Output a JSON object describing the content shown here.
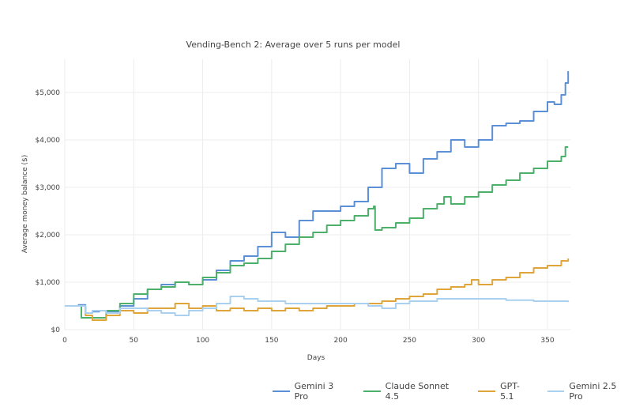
{
  "chart_data": {
    "type": "line",
    "title": "Vending-Bench 2: Average over 5 runs per model",
    "xlabel": "Days",
    "ylabel": "Average money balance ($)",
    "xlim": [
      0,
      367
    ],
    "ylim": [
      0,
      5700
    ],
    "xticks": [
      0,
      50,
      100,
      150,
      200,
      250,
      300,
      350
    ],
    "xtick_labels": [
      "0",
      "50",
      "100",
      "150",
      "200",
      "250",
      "300",
      "350"
    ],
    "yticks": [
      0,
      1000,
      2000,
      3000,
      4000,
      5000
    ],
    "ytick_labels": [
      "$0",
      "$1,000",
      "$2,000",
      "$3,000",
      "$4,000",
      "$5,000"
    ],
    "grid": true,
    "legend_placement": "bottom-right",
    "series": [
      {
        "name": "Gemini 3 Pro",
        "color": "#5b8fd6",
        "x": [
          0,
          10,
          15,
          20,
          25,
          30,
          40,
          50,
          60,
          70,
          80,
          90,
          100,
          110,
          120,
          130,
          140,
          150,
          160,
          170,
          180,
          190,
          200,
          210,
          220,
          230,
          240,
          250,
          260,
          270,
          280,
          290,
          300,
          310,
          320,
          330,
          340,
          350,
          355,
          360,
          363,
          365
        ],
        "y": [
          500,
          520,
          350,
          380,
          400,
          380,
          500,
          650,
          850,
          950,
          1000,
          950,
          1050,
          1250,
          1450,
          1550,
          1750,
          2050,
          1950,
          2300,
          2500,
          2500,
          2600,
          2700,
          3000,
          3400,
          3500,
          3300,
          3600,
          3750,
          4000,
          3850,
          4000,
          4300,
          4350,
          4400,
          4600,
          4800,
          4750,
          4950,
          5200,
          5450
        ]
      },
      {
        "name": "Claude Sonnet 4.5",
        "color": "#4caf6a",
        "x": [
          0,
          10,
          12,
          20,
          30,
          40,
          50,
          60,
          70,
          80,
          90,
          100,
          110,
          120,
          130,
          140,
          150,
          160,
          170,
          180,
          190,
          200,
          210,
          220,
          224,
          225,
          230,
          240,
          250,
          260,
          270,
          275,
          280,
          290,
          300,
          310,
          320,
          330,
          340,
          350,
          360,
          363,
          365
        ],
        "y": [
          500,
          500,
          250,
          250,
          400,
          550,
          750,
          850,
          900,
          1000,
          950,
          1100,
          1200,
          1350,
          1400,
          1500,
          1650,
          1800,
          1950,
          2050,
          2200,
          2300,
          2400,
          2550,
          2600,
          2100,
          2150,
          2250,
          2350,
          2550,
          2650,
          2800,
          2650,
          2800,
          2900,
          3050,
          3150,
          3300,
          3400,
          3550,
          3650,
          3850,
          3850
        ]
      },
      {
        "name": "GPT-5.1",
        "color": "#e0a53a",
        "x": [
          0,
          10,
          15,
          20,
          25,
          30,
          40,
          50,
          60,
          70,
          80,
          90,
          100,
          110,
          120,
          130,
          140,
          150,
          160,
          170,
          180,
          190,
          200,
          210,
          220,
          230,
          240,
          250,
          260,
          270,
          280,
          290,
          295,
          300,
          310,
          320,
          330,
          340,
          350,
          360,
          365
        ],
        "y": [
          500,
          500,
          300,
          200,
          200,
          300,
          400,
          350,
          450,
          450,
          550,
          450,
          500,
          400,
          450,
          400,
          450,
          400,
          450,
          400,
          450,
          500,
          500,
          550,
          550,
          600,
          650,
          700,
          750,
          850,
          900,
          950,
          1050,
          950,
          1050,
          1100,
          1200,
          1300,
          1350,
          1450,
          1500
        ]
      },
      {
        "name": "Gemini 2.5 Pro",
        "color": "#a9d0ee",
        "x": [
          0,
          10,
          15,
          20,
          30,
          40,
          50,
          60,
          70,
          80,
          90,
          100,
          110,
          120,
          130,
          140,
          150,
          160,
          170,
          180,
          190,
          200,
          210,
          220,
          230,
          240,
          250,
          260,
          270,
          280,
          300,
          320,
          340,
          365
        ],
        "y": [
          500,
          500,
          350,
          400,
          350,
          450,
          450,
          400,
          350,
          300,
          400,
          450,
          550,
          700,
          650,
          600,
          600,
          550,
          550,
          550,
          550,
          550,
          550,
          500,
          450,
          550,
          600,
          600,
          650,
          650,
          650,
          620,
          600,
          580
        ]
      }
    ]
  }
}
